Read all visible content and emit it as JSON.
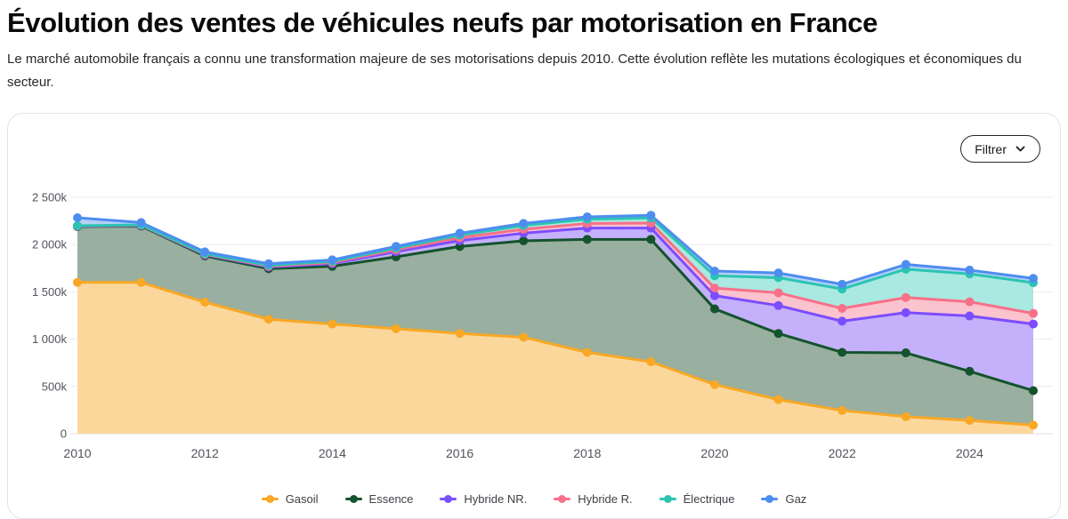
{
  "page": {
    "title": "Évolution des ventes de véhicules neufs par motorisation en France",
    "subtitle": "Le marché automobile français a connu une transformation majeure de ses motorisations depuis 2010. Cette évolution reflète les mutations écologiques et économiques du secteur."
  },
  "card": {
    "filter_button": {
      "label": "Filtrer",
      "icon": "chevron-down-icon"
    }
  },
  "chart_data": {
    "type": "area",
    "stacked": true,
    "unit": "vehicles sold, thousands",
    "x": [
      2010,
      2011,
      2012,
      2013,
      2014,
      2015,
      2016,
      2017,
      2018,
      2019,
      2020,
      2021,
      2022,
      2023,
      2024,
      2025
    ],
    "x_tick_labels": [
      "2010",
      "2012",
      "2014",
      "2016",
      "2018",
      "2020",
      "2022",
      "2024"
    ],
    "y_ticks": [
      0,
      500,
      1000,
      1500,
      2000,
      2500
    ],
    "y_tick_labels": [
      "0",
      "500k",
      "1 000k",
      "1 500k",
      "2 000k",
      "2 500k"
    ],
    "ylim": [
      0,
      2500
    ],
    "grid": true,
    "legend_position": "bottom",
    "series": [
      {
        "name": "Gasoil",
        "slug": "gasoil",
        "color": "#F9A825",
        "fill": "#FCD79C",
        "values": [
          1600,
          1600,
          1390,
          1210,
          1160,
          1110,
          1060,
          1020,
          860,
          760,
          520,
          360,
          245,
          180,
          140,
          90
        ]
      },
      {
        "name": "Essence",
        "slug": "essence",
        "color": "#14532D",
        "fill": "#99AF9F",
        "values": [
          590,
          595,
          490,
          535,
          610,
          760,
          920,
          1020,
          1195,
          1295,
          800,
          700,
          615,
          675,
          520,
          365
        ]
      },
      {
        "name": "Hybride NR.",
        "slug": "hybride-nr",
        "color": "#7C4DFF",
        "fill": "#C5B1FB",
        "values": [
          5,
          6,
          12,
          18,
          28,
          55,
          62,
          80,
          120,
          120,
          140,
          295,
          330,
          425,
          585,
          705
        ]
      },
      {
        "name": "Hybride R.",
        "slug": "hybride-r",
        "color": "#F87089",
        "fill": "#FBC3CE",
        "values": [
          2,
          3,
          5,
          8,
          12,
          20,
          30,
          42,
          48,
          52,
          80,
          135,
          135,
          160,
          150,
          112
        ]
      },
      {
        "name": "Électrique",
        "slug": "electrique",
        "color": "#2BC4B2",
        "fill": "#A9E9E1",
        "values": [
          2,
          4,
          6,
          9,
          12,
          18,
          28,
          40,
          45,
          55,
          130,
          160,
          205,
          300,
          295,
          325
        ]
      },
      {
        "name": "Gaz",
        "slug": "gaz",
        "color": "#4E8DF0",
        "fill": "#B4D1F8",
        "values": [
          85,
          25,
          20,
          18,
          16,
          18,
          20,
          22,
          25,
          28,
          50,
          50,
          50,
          50,
          40,
          45
        ]
      }
    ],
    "colors": {
      "gridline": "#ececef",
      "zero_line": "#dcdce0",
      "tick_label": "#52525b"
    }
  }
}
